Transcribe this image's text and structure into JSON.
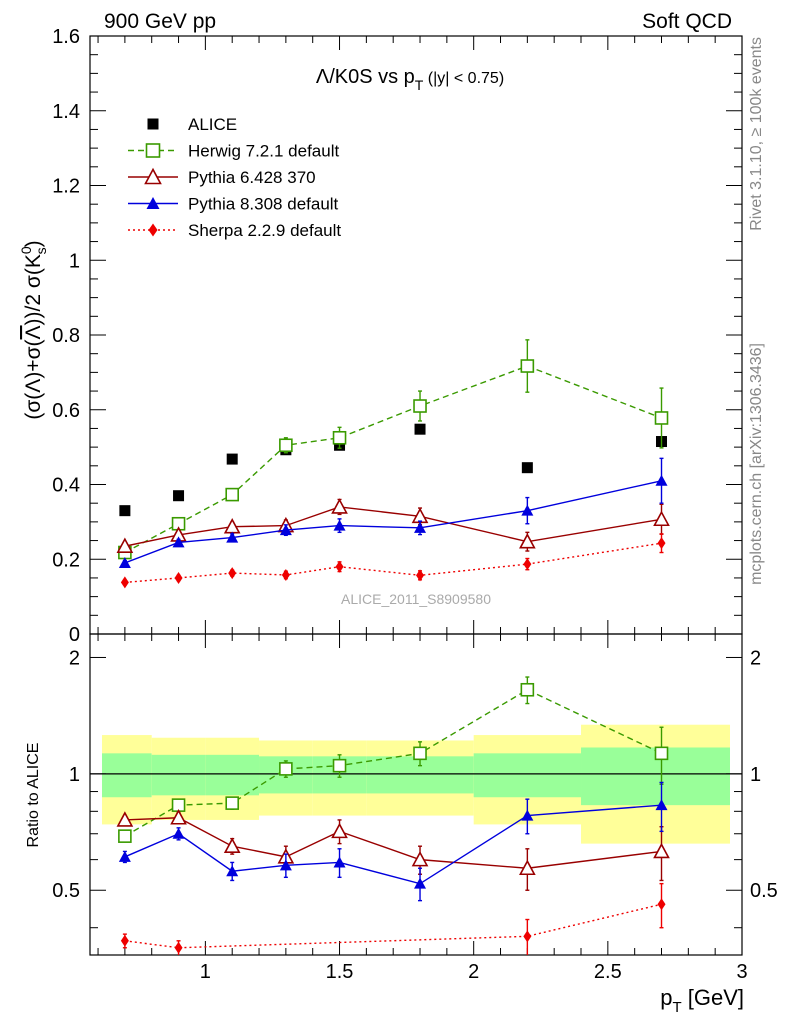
{
  "header": {
    "left": "900 GeV pp",
    "right": "Soft QCD"
  },
  "side_labels": {
    "rivet": "Rivet 3.1.10, ≥ 100k events",
    "mcplots": "mcplots.cern.ch [arXiv:1306.3436]"
  },
  "chart_data": {
    "type": "scatter",
    "title": "Λ/K0S vs pT (|y| < 0.75)",
    "title_parts": {
      "main": "Λ/K0S vs p",
      "sub": "T",
      "cut": " (|y| < 0.75)"
    },
    "watermark": "ALICE_2011_S8909580",
    "xlabel": "p_T [GeV]",
    "xlabel_parts": {
      "main": "p",
      "sub": "T",
      "unit": " [GeV]"
    },
    "ylabel": "(σ(Λ)+σ(Λ̅))/2 σ(K⁰ₛ)",
    "xlim": [
      0.57,
      3.0
    ],
    "x_ticks": [
      "1",
      "1.5",
      "2",
      "2.5",
      "3"
    ],
    "main": {
      "ylim": [
        0,
        1.6
      ],
      "y_ticks": [
        "0",
        "0.2",
        "0.4",
        "0.6",
        "0.8",
        "1",
        "1.2",
        "1.4",
        "1.6"
      ],
      "series": [
        {
          "name": "ALICE",
          "color": "#000000",
          "marker": "square-filled",
          "line": "none",
          "x": [
            0.7,
            0.9,
            1.1,
            1.3,
            1.5,
            1.8,
            2.2,
            2.7
          ],
          "y": [
            0.33,
            0.37,
            0.468,
            0.493,
            0.505,
            0.548,
            0.445,
            0.515
          ],
          "err": [
            0.006,
            0.006,
            0.006,
            0.006,
            0.006,
            0.006,
            0.006,
            0.006
          ]
        },
        {
          "name": "Herwig 7.2.1 default",
          "color": "#3a9a00",
          "marker": "square-open",
          "line": "dashed",
          "x": [
            0.7,
            0.9,
            1.1,
            1.3,
            1.5,
            1.8,
            2.2,
            2.7
          ],
          "y": [
            0.218,
            0.295,
            0.373,
            0.505,
            0.525,
            0.61,
            0.717,
            0.578
          ],
          "err": [
            0.008,
            0.008,
            0.012,
            0.02,
            0.028,
            0.04,
            0.07,
            0.08
          ]
        },
        {
          "name": "Pythia 6.428 370",
          "color": "#990000",
          "marker": "triangle-open",
          "line": "solid",
          "x": [
            0.7,
            0.9,
            1.1,
            1.3,
            1.5,
            1.8,
            2.2,
            2.7
          ],
          "y": [
            0.235,
            0.265,
            0.287,
            0.29,
            0.34,
            0.315,
            0.247,
            0.307
          ],
          "err": [
            0.006,
            0.008,
            0.012,
            0.015,
            0.02,
            0.022,
            0.025,
            0.04
          ]
        },
        {
          "name": "Pythia 8.308 default",
          "color": "#0000dd",
          "marker": "triangle-filled",
          "line": "solid",
          "x": [
            0.7,
            0.9,
            1.1,
            1.3,
            1.5,
            1.8,
            2.2,
            2.7
          ],
          "y": [
            0.19,
            0.245,
            0.258,
            0.278,
            0.29,
            0.284,
            0.33,
            0.41
          ],
          "err": [
            0.006,
            0.008,
            0.01,
            0.014,
            0.018,
            0.018,
            0.035,
            0.06
          ]
        },
        {
          "name": "Sherpa 2.2.9 default",
          "color": "#ee0000",
          "marker": "diamond-filled",
          "line": "dotted",
          "x": [
            0.7,
            0.9,
            1.1,
            1.3,
            1.5,
            1.8,
            2.2,
            2.7
          ],
          "y": [
            0.138,
            0.15,
            0.163,
            0.158,
            0.18,
            0.157,
            0.187,
            0.243
          ],
          "err": [
            0.006,
            0.007,
            0.008,
            0.01,
            0.013,
            0.012,
            0.015,
            0.025
          ]
        }
      ]
    },
    "ratio": {
      "ylabel": "Ratio to ALICE",
      "ylim": [
        0.34,
        2.3
      ],
      "y_ticks": [
        "0.5",
        "1",
        "2"
      ],
      "bin_edges": [
        0.6,
        0.8,
        1.0,
        1.2,
        1.4,
        1.6,
        2.0,
        2.4,
        3.0
      ],
      "band_green": [
        0.13,
        0.12,
        0.12,
        0.11,
        0.11,
        0.11,
        0.13,
        0.17
      ],
      "band_yellow": [
        0.26,
        0.24,
        0.24,
        0.22,
        0.22,
        0.22,
        0.26,
        0.34
      ],
      "series": [
        {
          "name": "Herwig 7.2.1 default",
          "y": [
            0.69,
            0.83,
            0.84,
            1.03,
            1.05,
            1.13,
            1.65,
            1.13
          ],
          "err": [
            0.02,
            0.02,
            0.03,
            0.05,
            0.07,
            0.08,
            0.13,
            0.19
          ]
        },
        {
          "name": "Pythia 6.428 370",
          "y": [
            0.76,
            0.77,
            0.65,
            0.61,
            0.71,
            0.6,
            0.57,
            0.63
          ],
          "err": [
            0.02,
            0.025,
            0.03,
            0.04,
            0.05,
            0.05,
            0.07,
            0.1
          ]
        },
        {
          "name": "Pythia 8.308 default",
          "y": [
            0.61,
            0.7,
            0.56,
            0.58,
            0.59,
            0.52,
            0.78,
            0.83
          ],
          "err": [
            0.02,
            0.025,
            0.03,
            0.04,
            0.05,
            0.05,
            0.08,
            0.12
          ]
        },
        {
          "name": "Sherpa 2.2.9 default",
          "y": [
            0.37,
            0.355,
            0.27,
            0.26,
            0.27,
            0.22,
            0.38,
            0.46
          ],
          "err": [
            0.015,
            0.015,
            0.02,
            0.025,
            0.03,
            0.03,
            0.04,
            0.06
          ]
        }
      ]
    }
  }
}
